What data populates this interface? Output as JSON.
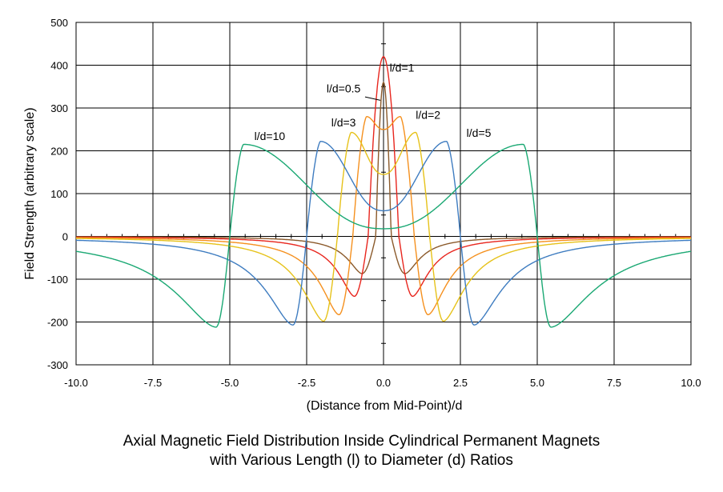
{
  "chart_data": {
    "type": "line",
    "title_line1": "Axial Magnetic Field Distribution Inside Cylindrical Permanent Magnets",
    "title_line2": "with Various Length (l) to Diameter (d) Ratios",
    "xlabel": "(Distance from Mid-Point)/d",
    "ylabel": "Field Strength (arbitrary scale)",
    "xlim": [
      -10,
      10
    ],
    "ylim": [
      -300,
      500
    ],
    "x_ticks": [
      -10,
      -7.5,
      -5,
      -2.5,
      0,
      2.5,
      5,
      7.5,
      10
    ],
    "x_tick_labels": [
      "-10.0",
      "-7.5",
      "-5.0",
      "-2.5",
      "0.0",
      "2.5",
      "5.0",
      "7.5",
      "10.0"
    ],
    "y_ticks": [
      -300,
      -200,
      -100,
      0,
      100,
      200,
      300,
      400,
      500
    ],
    "y_tick_labels": [
      "-300",
      "-200",
      "-100",
      "0",
      "100",
      "200",
      "300",
      "400",
      "500"
    ],
    "grid": true,
    "series": [
      {
        "name": "l/d=0.5",
        "color": "#8b5a2b",
        "ratio": 0.5,
        "center": 360,
        "peak": 360,
        "trough": -87,
        "trough_x": 0.7
      },
      {
        "name": "l/d=1",
        "color": "#e8261e",
        "ratio": 1,
        "center": 420,
        "peak": 420,
        "trough": -140,
        "trough_x": 0.95
      },
      {
        "name": "l/d=2",
        "color": "#f5901e",
        "ratio": 2,
        "center": 250,
        "peak": 280,
        "peak_x": 0.55,
        "trough": -183,
        "trough_x": 1.45
      },
      {
        "name": "l/d=3",
        "color": "#e6c21a",
        "ratio": 3,
        "center": 145,
        "peak": 243,
        "peak_x": 1.05,
        "trough": -198,
        "trough_x": 1.95
      },
      {
        "name": "l/d=5",
        "color": "#3e7cc0",
        "ratio": 5,
        "center": 60,
        "peak": 222,
        "peak_x": 2.05,
        "trough": -207,
        "trough_x": 2.95
      },
      {
        "name": "l/d=10",
        "color": "#1aa873",
        "ratio": 10,
        "center": 18,
        "peak": 215,
        "peak_x": 4.55,
        "trough": -212,
        "trough_x": 5.45
      }
    ],
    "annotations": [
      {
        "text": "l/d=1",
        "x": 0.6,
        "y": 385
      },
      {
        "text": "l/d=0.5",
        "x": -1.3,
        "y": 336
      },
      {
        "text": "l/d=2",
        "x": 1.45,
        "y": 275
      },
      {
        "text": "l/d=3",
        "x": -1.3,
        "y": 257
      },
      {
        "text": "l/d=5",
        "x": 3.1,
        "y": 233
      },
      {
        "text": "l/d=10",
        "x": -3.7,
        "y": 225
      }
    ]
  }
}
